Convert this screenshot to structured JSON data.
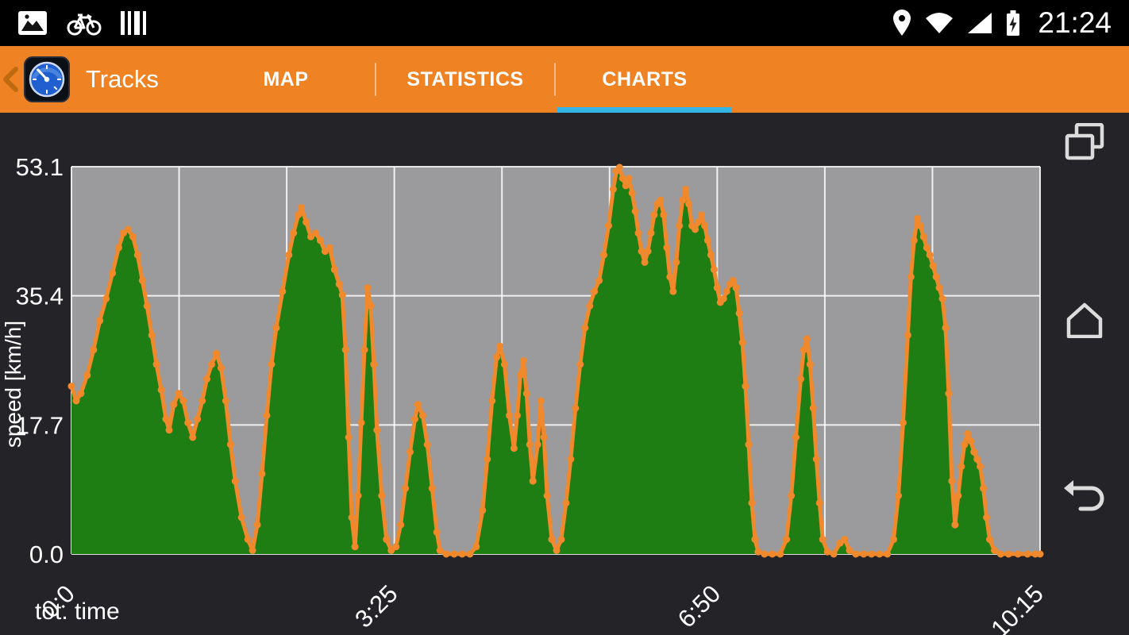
{
  "status_bar": {
    "time": "21:24",
    "left_icons": [
      "gallery-icon",
      "bike-icon",
      "barcode-icon"
    ],
    "right_icons": [
      "location-icon",
      "wifi-icon",
      "signal-icon",
      "battery-charging-icon"
    ]
  },
  "action_bar": {
    "title": "Tracks",
    "background": "#ef8222",
    "accent_color": "#33b5e5",
    "tabs": [
      {
        "label": "MAP",
        "active": false
      },
      {
        "label": "STATISTICS",
        "active": false
      },
      {
        "label": "CHARTS",
        "active": true
      }
    ]
  },
  "nav_bar": {
    "icons": [
      "recents-icon",
      "home-icon",
      "back-icon"
    ]
  },
  "chart_data": {
    "type": "area",
    "title": "",
    "xlabel": "tot. time",
    "ylabel": "speed [km/h]",
    "xlim": [
      0,
      615
    ],
    "ylim": [
      0,
      53.1
    ],
    "x_minor_divisions": 9,
    "x_tick_minutes": [
      0,
      205,
      410,
      615
    ],
    "x_tick_labels": [
      "0:0",
      "3:25",
      "6:50",
      "10:15"
    ],
    "y_ticks": [
      0,
      17.7,
      35.4,
      53.1
    ],
    "y_tick_labels": [
      "0.0",
      "17.7",
      "35.4",
      "53.1"
    ],
    "legend": "none",
    "grid": true,
    "colors": {
      "plot_bg": "#9b9b9d",
      "grid": "#ffffff",
      "area": "#1e7e14",
      "line": "#f0882c",
      "text": "#ffffff",
      "page_bg": "#242428"
    },
    "series_name": "speed",
    "points": [
      [
        0,
        23
      ],
      [
        3,
        21
      ],
      [
        6,
        22
      ],
      [
        10,
        24.5
      ],
      [
        14,
        28
      ],
      [
        18,
        32
      ],
      [
        22,
        35
      ],
      [
        26,
        38.5
      ],
      [
        30,
        42
      ],
      [
        33,
        44
      ],
      [
        36,
        44.5
      ],
      [
        39,
        43.5
      ],
      [
        42,
        41
      ],
      [
        45,
        37.5
      ],
      [
        48,
        34
      ],
      [
        51,
        30
      ],
      [
        54,
        26
      ],
      [
        57,
        22.5
      ],
      [
        60,
        18.5
      ],
      [
        62,
        17
      ],
      [
        65,
        20.5
      ],
      [
        68,
        22
      ],
      [
        71,
        21
      ],
      [
        74,
        18
      ],
      [
        77,
        16
      ],
      [
        80,
        18.5
      ],
      [
        83,
        21
      ],
      [
        86,
        24
      ],
      [
        89,
        26
      ],
      [
        92,
        27.5
      ],
      [
        95,
        25.5
      ],
      [
        98,
        21
      ],
      [
        101,
        15
      ],
      [
        104,
        10
      ],
      [
        108,
        5
      ],
      [
        112,
        2
      ],
      [
        115,
        0.5
      ],
      [
        118,
        4
      ],
      [
        121,
        11
      ],
      [
        124,
        19
      ],
      [
        127,
        26
      ],
      [
        130,
        31
      ],
      [
        134,
        36
      ],
      [
        138,
        41
      ],
      [
        141,
        44
      ],
      [
        144,
        46.5
      ],
      [
        146,
        47.5
      ],
      [
        149,
        45.5
      ],
      [
        152,
        43.5
      ],
      [
        155,
        44
      ],
      [
        158,
        43
      ],
      [
        161,
        41.5
      ],
      [
        164,
        42
      ],
      [
        167,
        39
      ],
      [
        170,
        37
      ],
      [
        172,
        35.5
      ],
      [
        174,
        28
      ],
      [
        176,
        16
      ],
      [
        178,
        5
      ],
      [
        180,
        1
      ],
      [
        182,
        8
      ],
      [
        184,
        18
      ],
      [
        186,
        28
      ],
      [
        188,
        36.5
      ],
      [
        190,
        34
      ],
      [
        192,
        26
      ],
      [
        194,
        17
      ],
      [
        197,
        8
      ],
      [
        200,
        2
      ],
      [
        203,
        0.5
      ],
      [
        206,
        1
      ],
      [
        209,
        4
      ],
      [
        212,
        9
      ],
      [
        215,
        14
      ],
      [
        218,
        18.5
      ],
      [
        220,
        20.5
      ],
      [
        223,
        19
      ],
      [
        226,
        15
      ],
      [
        229,
        9
      ],
      [
        232,
        3
      ],
      [
        234,
        0.5
      ],
      [
        238,
        0
      ],
      [
        243,
        0
      ],
      [
        248,
        0
      ],
      [
        253,
        0
      ],
      [
        257,
        1
      ],
      [
        261,
        6
      ],
      [
        264,
        13
      ],
      [
        267,
        21
      ],
      [
        270,
        27
      ],
      [
        272,
        28.5
      ],
      [
        275,
        26
      ],
      [
        278,
        19
      ],
      [
        281,
        14.5
      ],
      [
        283,
        19
      ],
      [
        285,
        24.5
      ],
      [
        287,
        26.5
      ],
      [
        289,
        22
      ],
      [
        291,
        15
      ],
      [
        293,
        10
      ],
      [
        296,
        15
      ],
      [
        298,
        21
      ],
      [
        300,
        16
      ],
      [
        302,
        8
      ],
      [
        305,
        2
      ],
      [
        308,
        0.5
      ],
      [
        311,
        2
      ],
      [
        314,
        7
      ],
      [
        317,
        13
      ],
      [
        320,
        20
      ],
      [
        323,
        26
      ],
      [
        326,
        31
      ],
      [
        329,
        34
      ],
      [
        332,
        36
      ],
      [
        335,
        37.5
      ],
      [
        338,
        41
      ],
      [
        341,
        45
      ],
      [
        344,
        50
      ],
      [
        346,
        52.5
      ],
      [
        348,
        53
      ],
      [
        350,
        51.5
      ],
      [
        352,
        50.5
      ],
      [
        354,
        51.5
      ],
      [
        356,
        49.5
      ],
      [
        358,
        47
      ],
      [
        360,
        44
      ],
      [
        362,
        41.5
      ],
      [
        364,
        40
      ],
      [
        366,
        41.5
      ],
      [
        368,
        44
      ],
      [
        370,
        46.5
      ],
      [
        372,
        48
      ],
      [
        374,
        48.5
      ],
      [
        376,
        46.5
      ],
      [
        378,
        42
      ],
      [
        380,
        38
      ],
      [
        382,
        36
      ],
      [
        384,
        40
      ],
      [
        386,
        45
      ],
      [
        388,
        48.5
      ],
      [
        390,
        50
      ],
      [
        392,
        48
      ],
      [
        394,
        45
      ],
      [
        396,
        44.5
      ],
      [
        398,
        45.5
      ],
      [
        400,
        46.5
      ],
      [
        402,
        45
      ],
      [
        404,
        43
      ],
      [
        406,
        41
      ],
      [
        408,
        39
      ],
      [
        410,
        36.5
      ],
      [
        412,
        34.5
      ],
      [
        414,
        35
      ],
      [
        416,
        36
      ],
      [
        418,
        37
      ],
      [
        420,
        37.5
      ],
      [
        422,
        36.5
      ],
      [
        424,
        33
      ],
      [
        426,
        29
      ],
      [
        428,
        23
      ],
      [
        430,
        15
      ],
      [
        432,
        7
      ],
      [
        434,
        2
      ],
      [
        436,
        0.3
      ],
      [
        440,
        0
      ],
      [
        445,
        0
      ],
      [
        450,
        0
      ],
      [
        454,
        2
      ],
      [
        457,
        8
      ],
      [
        460,
        16
      ],
      [
        463,
        24
      ],
      [
        465,
        28
      ],
      [
        467,
        29.5
      ],
      [
        469,
        26
      ],
      [
        471,
        20
      ],
      [
        473,
        13
      ],
      [
        475,
        7
      ],
      [
        477,
        2
      ],
      [
        480,
        0.3
      ],
      [
        484,
        0
      ],
      [
        488,
        1.5
      ],
      [
        491,
        2
      ],
      [
        494,
        0.5
      ],
      [
        498,
        0
      ],
      [
        503,
        0
      ],
      [
        508,
        0
      ],
      [
        513,
        0
      ],
      [
        518,
        0
      ],
      [
        522,
        2
      ],
      [
        525,
        8
      ],
      [
        528,
        18
      ],
      [
        531,
        30
      ],
      [
        533,
        38
      ],
      [
        535,
        43
      ],
      [
        537,
        46
      ],
      [
        539,
        45
      ],
      [
        541,
        43.5
      ],
      [
        543,
        42
      ],
      [
        545,
        41
      ],
      [
        547,
        39.5
      ],
      [
        549,
        38
      ],
      [
        551,
        36.5
      ],
      [
        553,
        35
      ],
      [
        555,
        31
      ],
      [
        557,
        22
      ],
      [
        559,
        10
      ],
      [
        561,
        4
      ],
      [
        563,
        8
      ],
      [
        565,
        12
      ],
      [
        567,
        15
      ],
      [
        569,
        16.5
      ],
      [
        571,
        15.5
      ],
      [
        573,
        14
      ],
      [
        575,
        13
      ],
      [
        577,
        12
      ],
      [
        579,
        9
      ],
      [
        581,
        5
      ],
      [
        583,
        2
      ],
      [
        586,
        0.5
      ],
      [
        590,
        0
      ],
      [
        595,
        0
      ],
      [
        601,
        0
      ],
      [
        607,
        0
      ],
      [
        612,
        0
      ],
      [
        615,
        0
      ]
    ]
  }
}
